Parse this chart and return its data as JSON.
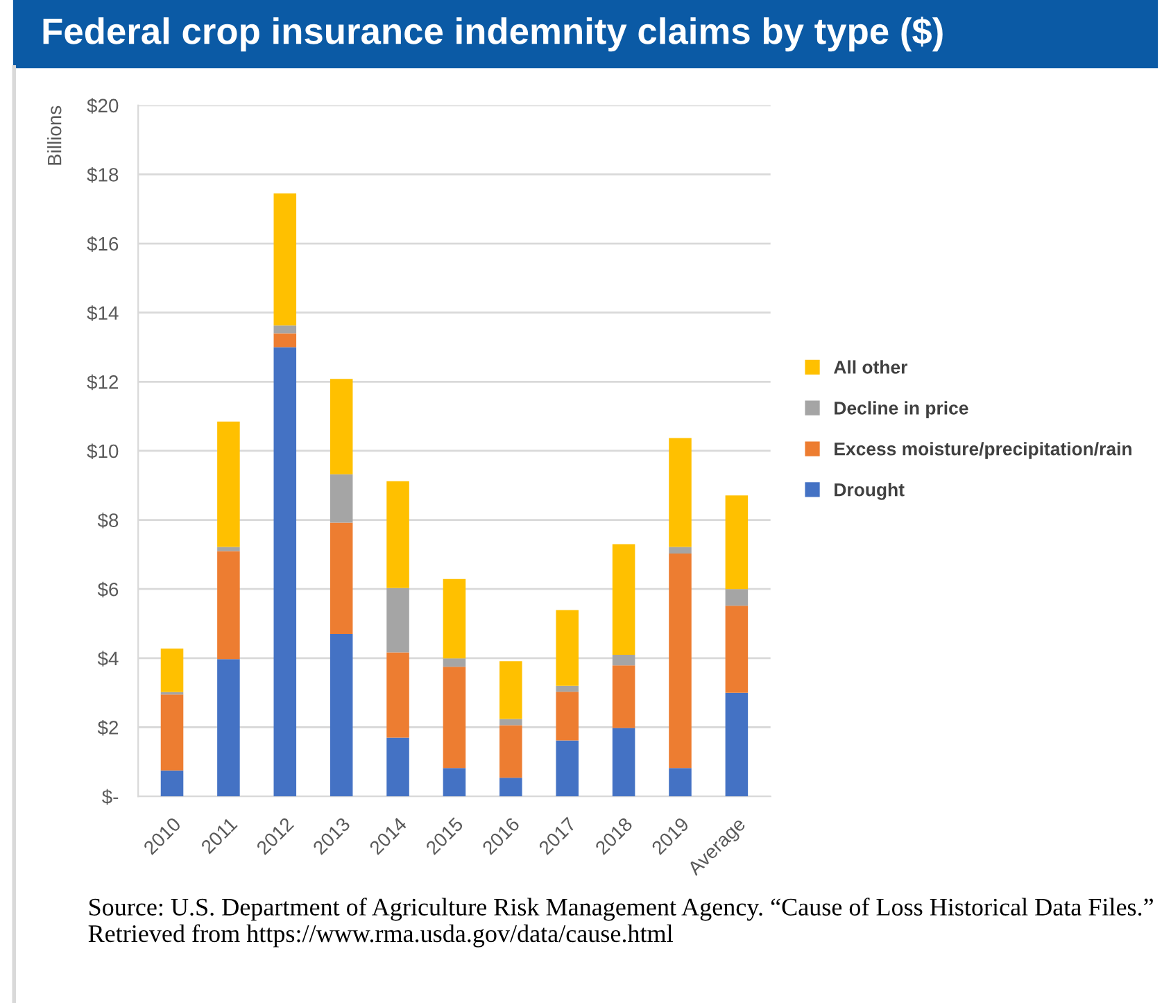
{
  "chart_data": {
    "type": "bar",
    "stacked": true,
    "title": "Federal crop insurance indemnity claims by type ($)",
    "ylabel": "Billions",
    "categories": [
      "2010",
      "2011",
      "2012",
      "2013",
      "2014",
      "2015",
      "2016",
      "2017",
      "2018",
      "2019",
      "Average"
    ],
    "series": [
      {
        "name": "Drought",
        "color": "#4472c4",
        "values": [
          0.75,
          3.97,
          13.0,
          4.7,
          1.7,
          0.82,
          0.54,
          1.62,
          1.98,
          0.82,
          3.0
        ]
      },
      {
        "name": "Excess moisture/precipitation/rain",
        "color": "#ed7d31",
        "values": [
          2.2,
          3.13,
          0.4,
          3.22,
          2.47,
          2.93,
          1.52,
          1.41,
          1.81,
          6.21,
          2.52
        ]
      },
      {
        "name": "Decline in price",
        "color": "#a5a5a5",
        "values": [
          0.07,
          0.12,
          0.23,
          1.4,
          1.86,
          0.24,
          0.18,
          0.17,
          0.31,
          0.19,
          0.48
        ]
      },
      {
        "name": "All other",
        "color": "#ffc000",
        "values": [
          1.26,
          3.63,
          3.82,
          2.76,
          3.09,
          2.3,
          1.67,
          2.19,
          3.2,
          3.15,
          2.71
        ]
      }
    ],
    "ylim": [
      0,
      20
    ],
    "yticks": [
      {
        "value": 0,
        "label": "$-"
      },
      {
        "value": 2,
        "label": "$2"
      },
      {
        "value": 4,
        "label": "$4"
      },
      {
        "value": 6,
        "label": "$6"
      },
      {
        "value": 8,
        "label": "$8"
      },
      {
        "value": 10,
        "label": "$10"
      },
      {
        "value": 12,
        "label": "$12"
      },
      {
        "value": 14,
        "label": "$14"
      },
      {
        "value": 16,
        "label": "$16"
      },
      {
        "value": 18,
        "label": "$18"
      },
      {
        "value": 20,
        "label": "$20"
      }
    ],
    "grid": "y",
    "legend": "right",
    "annotations": [
      "Source: U.S. Department of Agriculture Risk Management Agency. “Cause of Loss Historical Data Files.” Retrieved from https://www.rma.usda.gov/data/cause.html"
    ]
  }
}
